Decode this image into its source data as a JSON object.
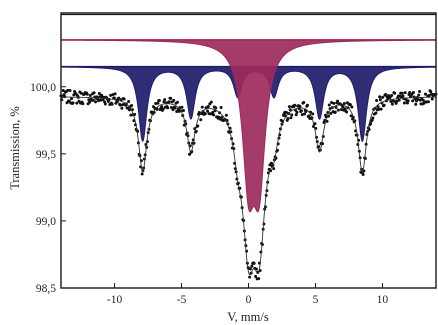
{
  "chart_data": {
    "type": "scatter",
    "title": "",
    "xlabel": "V, mm/s",
    "ylabel": "Transmission, %",
    "xlim": [
      -14,
      14
    ],
    "ylim": [
      98.5,
      100.55
    ],
    "x_ticks": [
      -10,
      -5,
      0,
      5,
      10
    ],
    "y_ticks": [
      98.5,
      99.0,
      99.5,
      100.0
    ],
    "x_tick_labels": [
      "-10",
      "-5",
      "0",
      "5",
      "10"
    ],
    "y_tick_labels": [
      "98,5",
      "99,0",
      "99,5",
      "100,0"
    ],
    "grid": false,
    "legend": "none",
    "baseline": 99.93,
    "measured_scatter_amplitude": 0.05,
    "series": [
      {
        "kind": "sextet-subspectrum",
        "color": "#1e1b6b",
        "offset_baseline": 100.15,
        "lines": [
          {
            "position": -7.9,
            "depth": 0.55,
            "width": 0.38
          },
          {
            "position": -4.3,
            "depth": 0.38,
            "width": 0.38
          },
          {
            "position": -0.8,
            "depth": 0.22,
            "width": 0.38
          },
          {
            "position": 1.9,
            "depth": 0.22,
            "width": 0.38
          },
          {
            "position": 5.3,
            "depth": 0.38,
            "width": 0.38
          },
          {
            "position": 8.5,
            "depth": 0.55,
            "width": 0.38
          }
        ]
      },
      {
        "kind": "doublet-subspectrum",
        "color": "#9c2a5c",
        "offset_baseline": 100.35,
        "lines": [
          {
            "position": 0.0,
            "depth": 0.95,
            "width": 0.55
          },
          {
            "position": 0.8,
            "depth": 0.95,
            "width": 0.55
          }
        ]
      }
    ],
    "colors": {
      "frame": "#1a1a1a",
      "points": "#111111",
      "fit_line": "#333333",
      "sextet": "#1e1b6b",
      "doublet": "#9c2a5c"
    }
  }
}
